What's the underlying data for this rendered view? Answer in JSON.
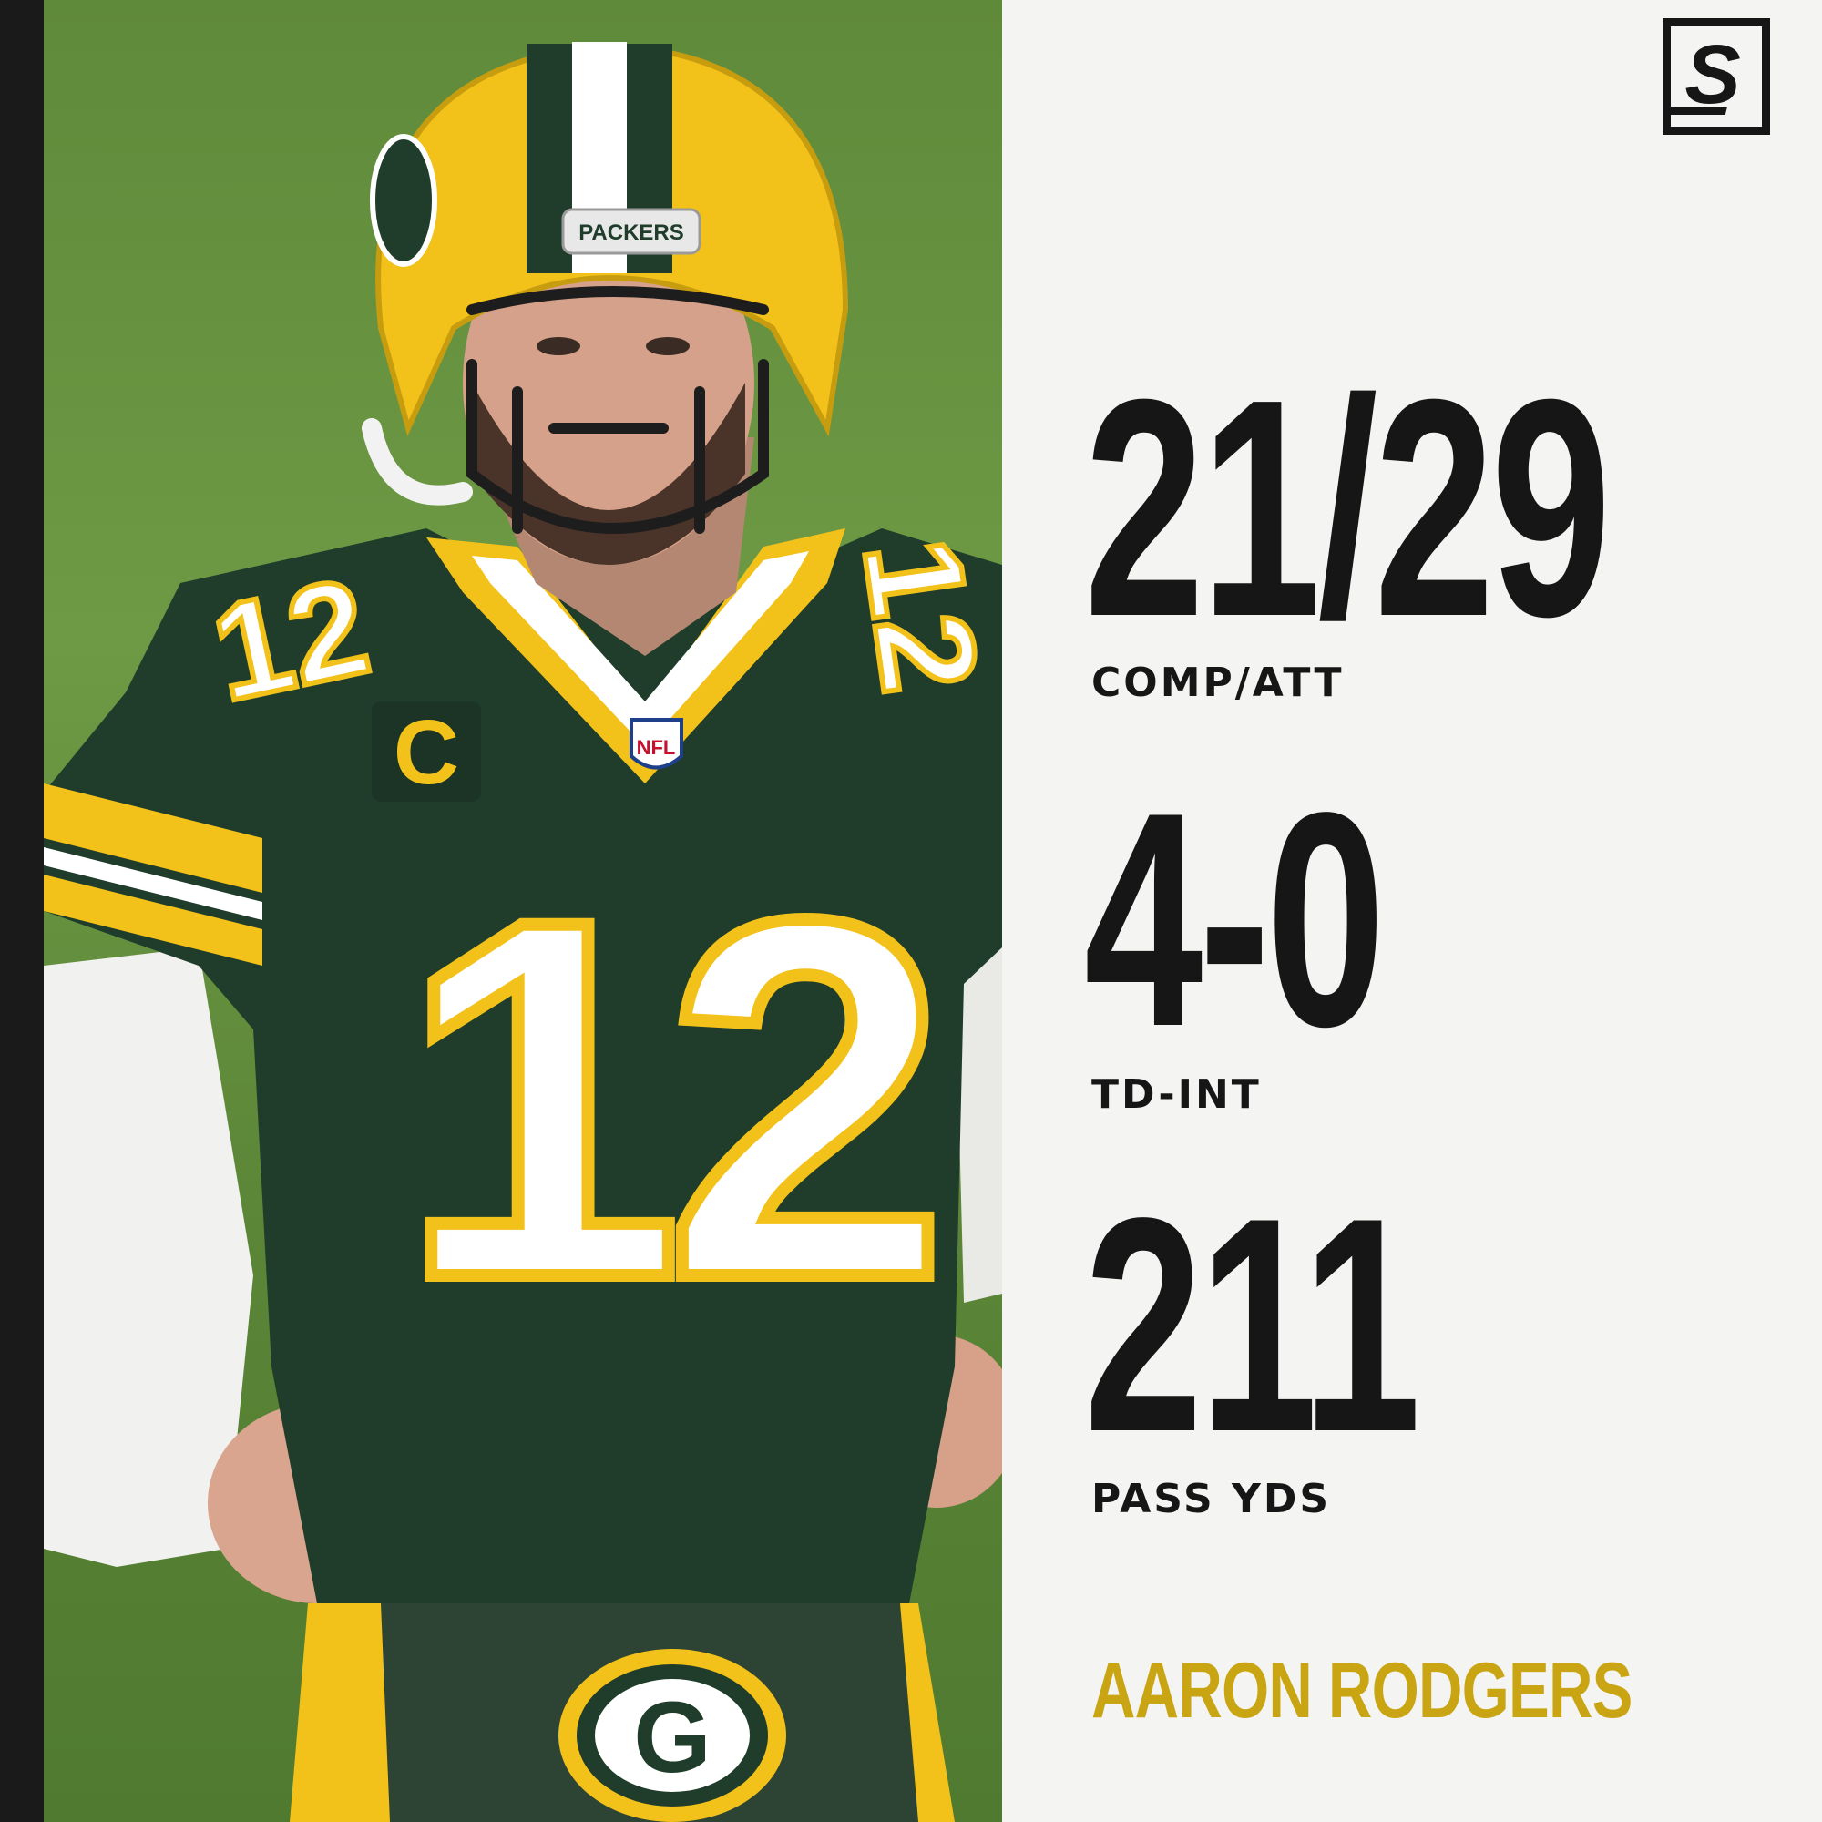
{
  "brand": {
    "logo_letter": "S"
  },
  "stats": [
    {
      "value": "21/29",
      "label": "COMP/ATT"
    },
    {
      "value": "4-0",
      "label": "TD-INT"
    },
    {
      "value": "211",
      "label": "PASS YDS"
    }
  ],
  "player": {
    "name": "AARON RODGERS"
  },
  "photo": {
    "jersey_number": "12",
    "helmet_text": "PACKERS",
    "captain_patch": "C",
    "shield_text": "NFL",
    "belt_logo": "G"
  },
  "colors": {
    "accent_gold": "#c9a514",
    "text_dark": "#161616",
    "background": "#f4f4f2",
    "packers_green": "#1f3d2a",
    "packers_yellow": "#f2c11a"
  }
}
